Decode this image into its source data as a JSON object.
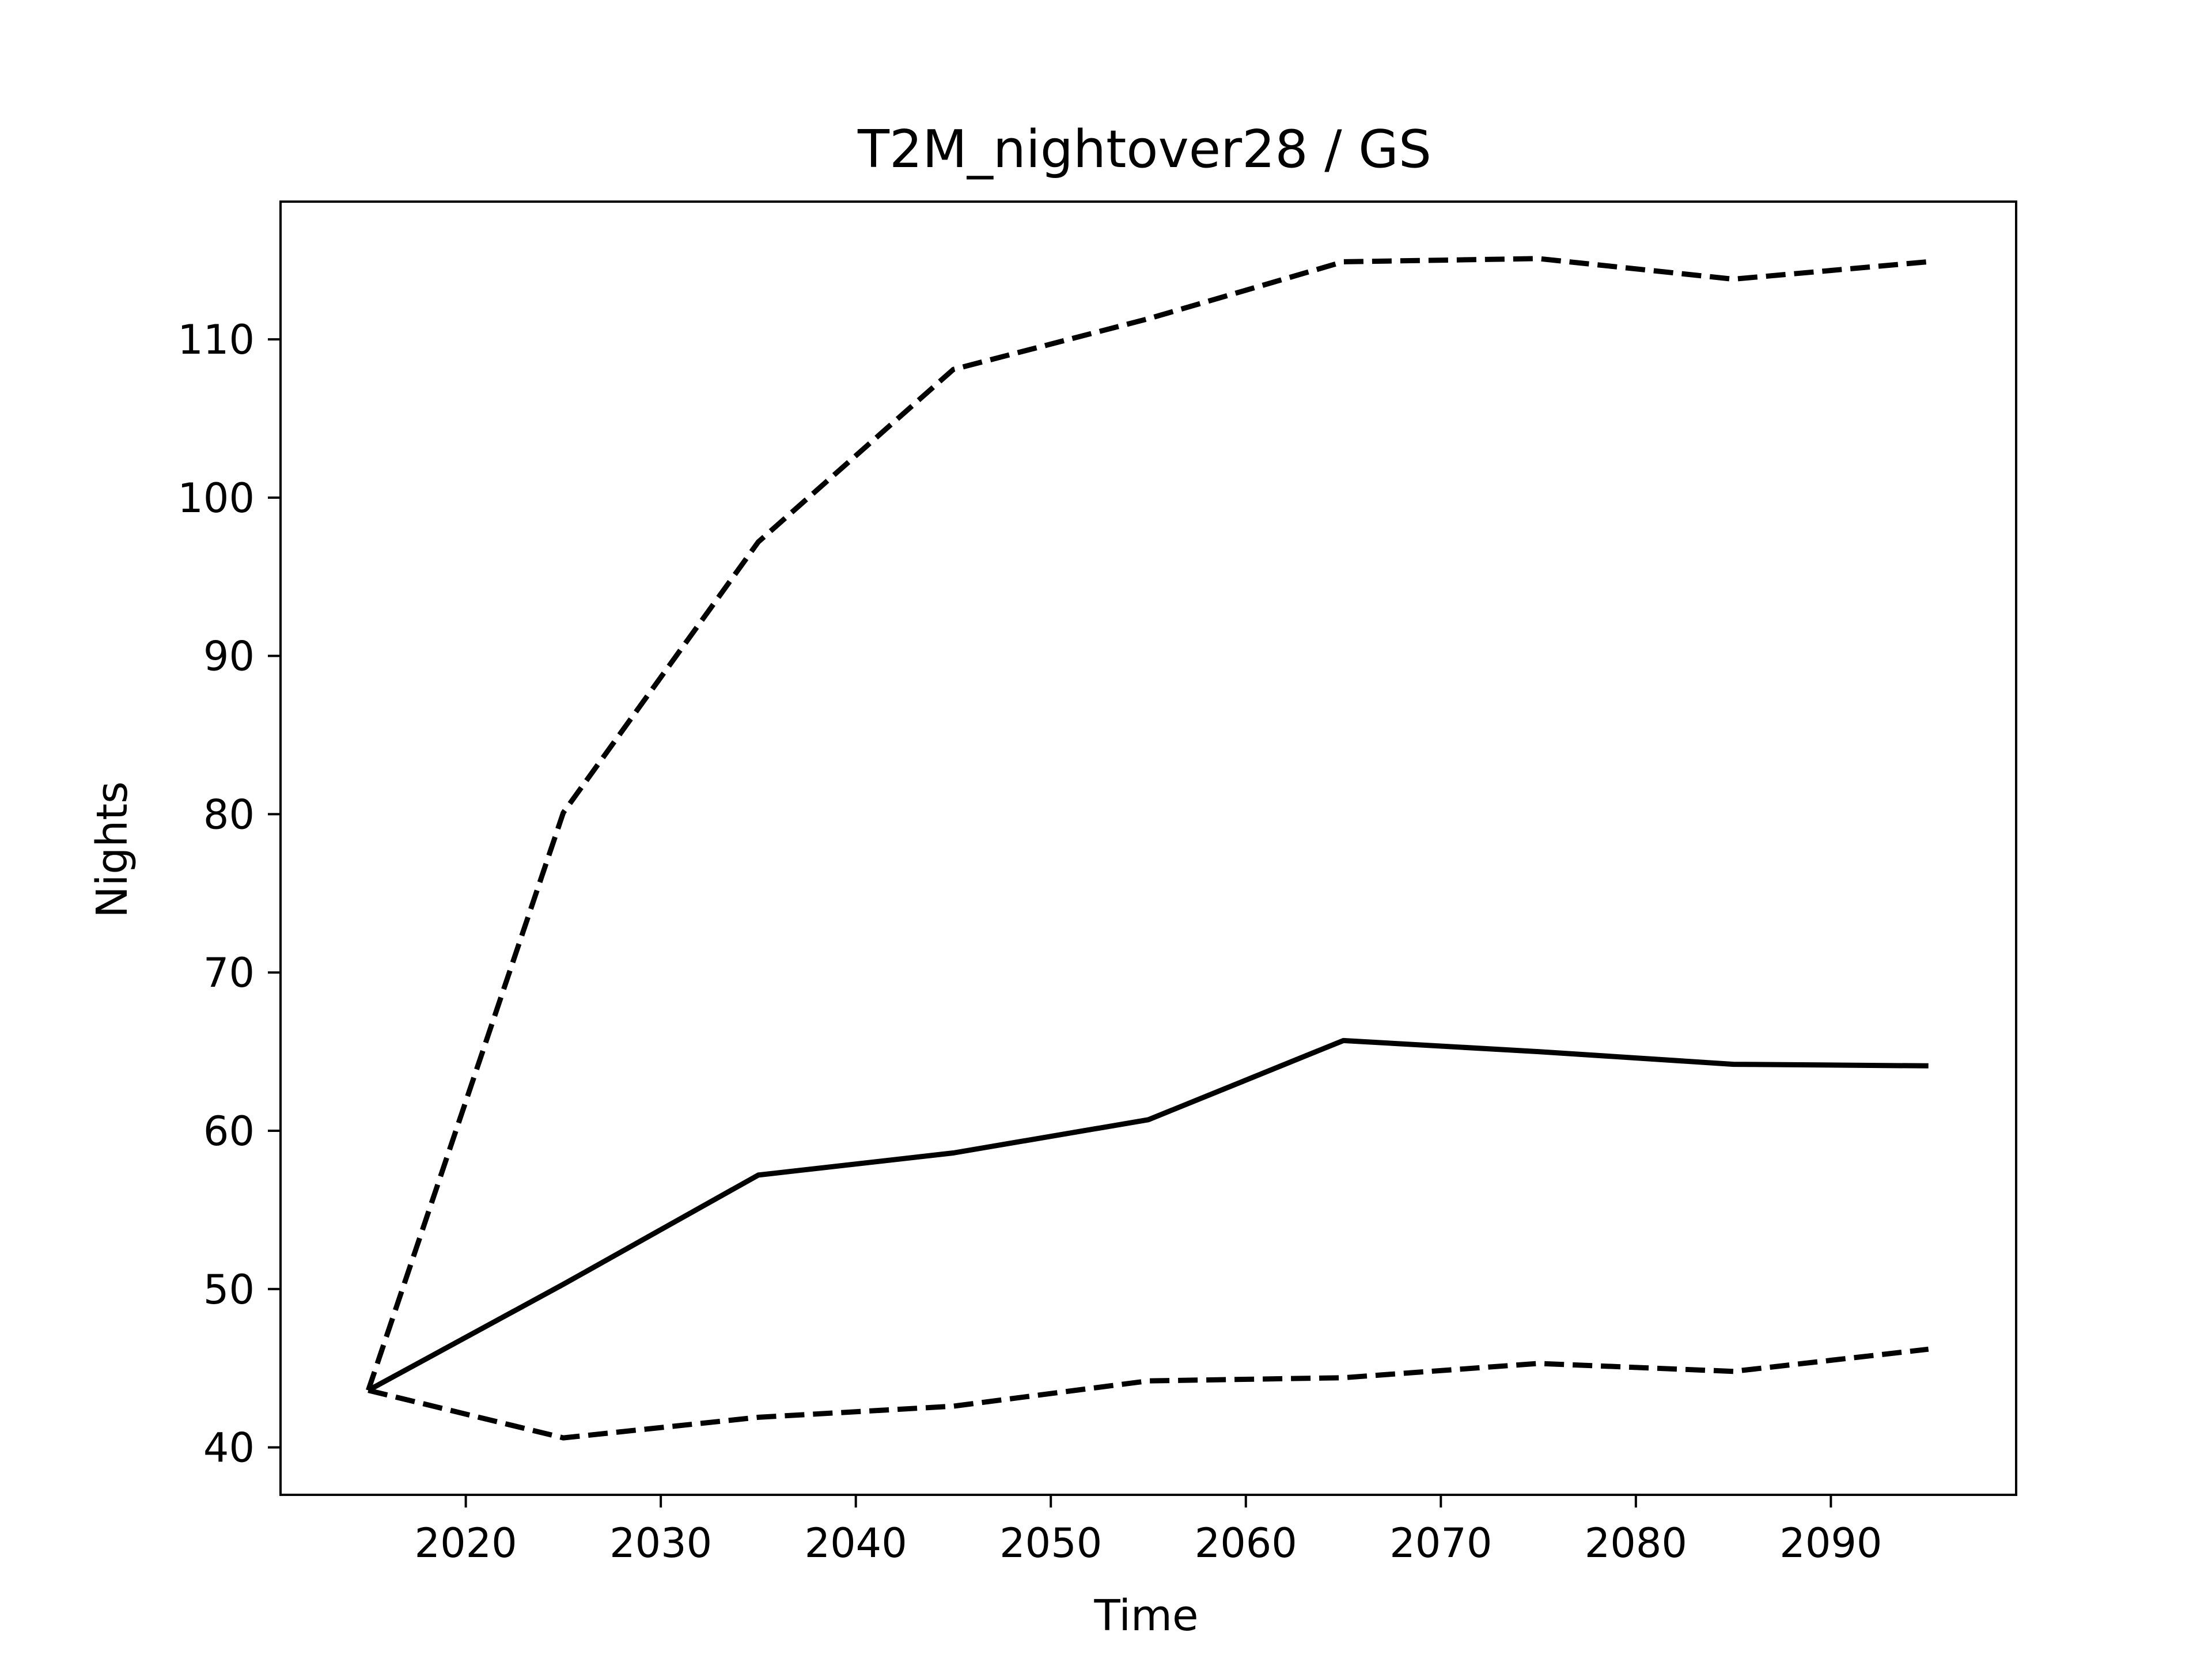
{
  "chart_data": {
    "type": "line",
    "title": "T2M_nightover28 / GS",
    "xlabel": "Time",
    "ylabel": "Nights",
    "xlim": [
      2010.5,
      2099.5
    ],
    "ylim": [
      37,
      118.7
    ],
    "xticks": [
      "2020",
      "2030",
      "2040",
      "2050",
      "2060",
      "2070",
      "2080",
      "2090"
    ],
    "yticks": [
      "40",
      "50",
      "60",
      "70",
      "80",
      "90",
      "100",
      "110"
    ],
    "grid": false,
    "x": [
      2015,
      2025,
      2035,
      2045,
      2055,
      2065,
      2075,
      2085,
      2095
    ],
    "series": [
      {
        "style": "dashed",
        "color": "#000000",
        "values": [
          43.6,
          80.1,
          97.2,
          108.1,
          111.3,
          114.9,
          115.1,
          113.8,
          114.9
        ]
      },
      {
        "style": "solid",
        "color": "#000000",
        "values": [
          43.6,
          50.3,
          57.2,
          58.6,
          60.7,
          65.7,
          65.0,
          64.2,
          64.1
        ]
      },
      {
        "style": "dashed",
        "color": "#000000",
        "values": [
          43.6,
          40.6,
          41.9,
          42.6,
          44.2,
          44.4,
          45.3,
          44.8,
          46.2
        ]
      }
    ]
  }
}
